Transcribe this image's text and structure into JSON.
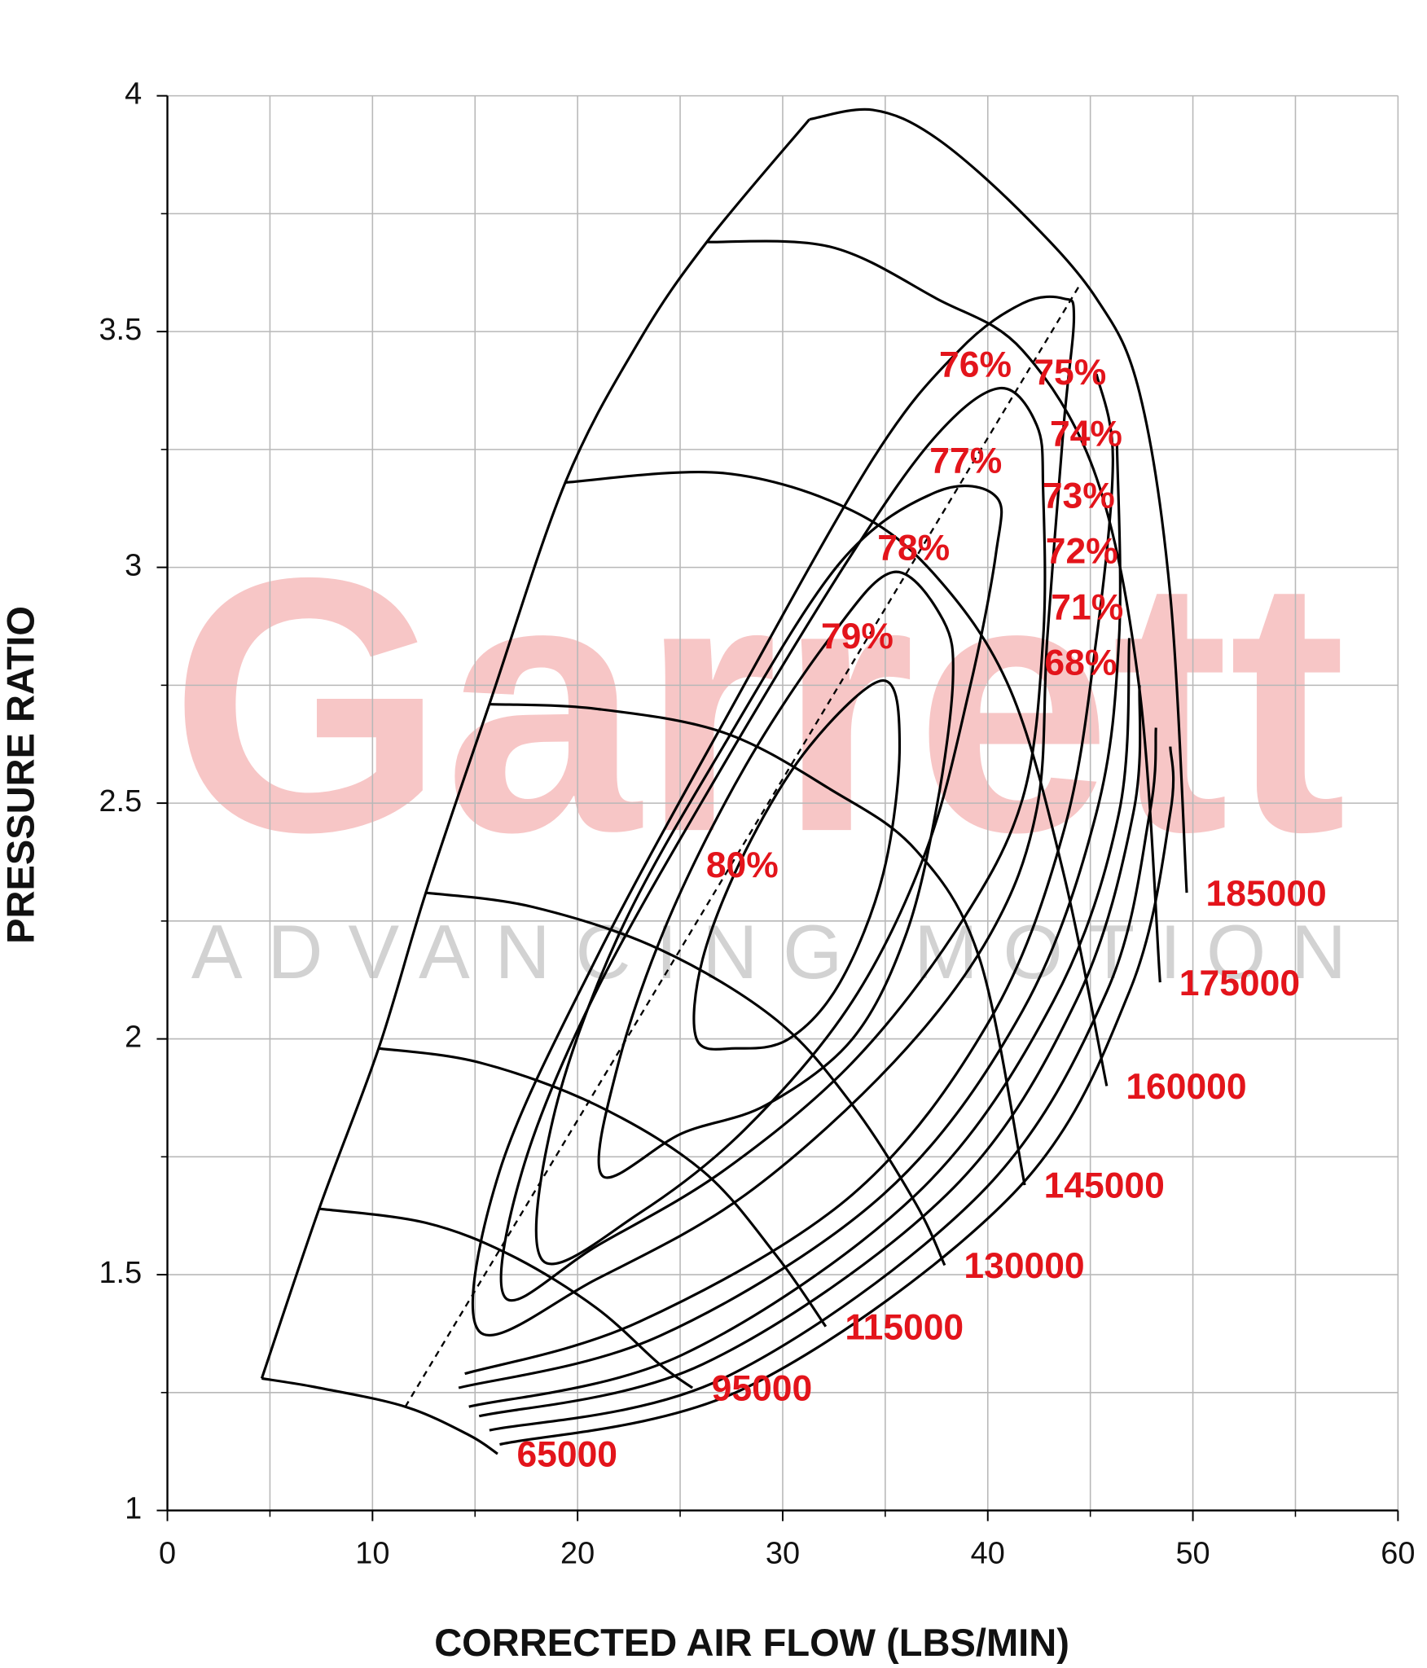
{
  "chart_data": {
    "type": "line",
    "xlabel": "CORRECTED AIR FLOW (LBS/MIN)",
    "ylabel": "PRESSURE RATIO",
    "watermark": {
      "brand": "Garrett",
      "tagline": "ADVANCING MOTION"
    },
    "xlim": [
      0,
      60
    ],
    "ylim": [
      1,
      4
    ],
    "xticks": [
      0,
      10,
      20,
      30,
      40,
      50,
      60
    ],
    "yticks": [
      1,
      1.5,
      2,
      2.5,
      3,
      3.5,
      4
    ],
    "x_minor_ticks": [
      5,
      15,
      25,
      35,
      45,
      55
    ],
    "y_minor_ticks": [
      1.25,
      1.75,
      2.25,
      2.75,
      3.25,
      3.75
    ],
    "grid": true,
    "line_color": "#000000",
    "label_color": "#e3141b",
    "speed_lines": [
      {
        "name": "65000",
        "x": [
          4.6,
          7.4,
          11.6,
          14.7,
          16.1
        ],
        "values": [
          1.28,
          1.26,
          1.22,
          1.16,
          1.12
        ]
      },
      {
        "name": "95000",
        "x": [
          7.4,
          12.6,
          16.8,
          20.9,
          24.0,
          25.6
        ],
        "values": [
          1.64,
          1.61,
          1.54,
          1.43,
          1.31,
          1.26
        ]
      },
      {
        "name": "115000",
        "x": [
          10.3,
          15.2,
          20.9,
          26.1,
          29.7,
          32.1
        ],
        "values": [
          1.98,
          1.95,
          1.86,
          1.72,
          1.54,
          1.39
        ]
      },
      {
        "name": "130000",
        "x": [
          12.6,
          17.8,
          24.0,
          29.7,
          33.4,
          36.5,
          37.9
        ],
        "values": [
          2.31,
          2.28,
          2.19,
          2.04,
          1.86,
          1.65,
          1.52
        ]
      },
      {
        "name": "145000",
        "x": [
          15.7,
          20.9,
          27.1,
          32.3,
          36.5,
          39.6,
          41.8
        ],
        "values": [
          2.71,
          2.7,
          2.65,
          2.53,
          2.4,
          2.17,
          1.69
        ]
      },
      {
        "name": "160000",
        "x": [
          19.4,
          27.1,
          33.4,
          37.5,
          41.1,
          43.7,
          45.8
        ],
        "values": [
          3.18,
          3.2,
          3.12,
          2.98,
          2.74,
          2.35,
          1.9
        ]
      },
      {
        "name": "175000",
        "x": [
          26.3,
          32.3,
          37.5,
          41.7,
          45.3,
          47.4,
          48.4
        ],
        "values": [
          3.69,
          3.68,
          3.57,
          3.46,
          3.19,
          2.74,
          2.12
        ]
      },
      {
        "name": "185000",
        "x": [
          31.3,
          34.4,
          37.5,
          41.7,
          45.3,
          47.4,
          48.9,
          49.7
        ],
        "values": [
          3.95,
          3.97,
          3.91,
          3.75,
          3.57,
          3.37,
          2.94,
          2.31
        ]
      }
    ],
    "surge_line": {
      "x": [
        4.6,
        7.4,
        10.3,
        12.6,
        15.7,
        19.4,
        23.0,
        26.3,
        31.3
      ],
      "values": [
        1.28,
        1.64,
        1.98,
        2.31,
        2.71,
        3.18,
        3.48,
        3.69,
        3.95
      ]
    },
    "centerline": {
      "dashed": true,
      "x": [
        11.6,
        44.5
      ],
      "values": [
        1.22,
        3.6
      ]
    },
    "efficiency_islands": [
      {
        "name": "80%",
        "closed": true,
        "x": [
          25.8,
          26.1,
          28.2,
          31.3,
          34.9,
          35.7,
          34.9,
          32.8,
          30.3,
          27.7
        ],
        "values": [
          2.0,
          2.17,
          2.4,
          2.62,
          2.76,
          2.62,
          2.35,
          2.12,
          2.0,
          1.98
        ]
      },
      {
        "name": "79%",
        "closed": true,
        "x": [
          21.2,
          22.0,
          24.5,
          28.2,
          32.3,
          35.4,
          37.8,
          38.3,
          37.5,
          36.0,
          33.4,
          29.2,
          25.1
        ],
        "values": [
          1.71,
          1.95,
          2.26,
          2.58,
          2.85,
          2.99,
          2.89,
          2.76,
          2.49,
          2.22,
          2.0,
          1.86,
          1.8
        ]
      },
      {
        "name": "78%",
        "closed": true,
        "x": [
          18.3,
          18.8,
          22.0,
          27.1,
          32.8,
          37.5,
          40.4,
          40.4,
          39.1,
          37.0,
          33.4,
          28.2,
          23.0
        ],
        "values": [
          1.53,
          1.83,
          2.22,
          2.62,
          3.01,
          3.16,
          3.15,
          3.03,
          2.74,
          2.4,
          2.08,
          1.81,
          1.63
        ]
      },
      {
        "name": "77%",
        "closed": true,
        "x": [
          16.5,
          17.3,
          20.9,
          27.1,
          33.4,
          37.5,
          40.6,
          42.4,
          42.7,
          42.7,
          41.7,
          38.6,
          33.4,
          27.1,
          20.9
        ],
        "values": [
          1.45,
          1.72,
          2.1,
          2.58,
          3.03,
          3.28,
          3.38,
          3.3,
          3.16,
          2.85,
          2.51,
          2.24,
          1.95,
          1.72,
          1.56
        ]
      },
      {
        "name": "76%",
        "closed": true,
        "x": [
          15.2,
          16.2,
          20.9,
          27.1,
          34.4,
          38.6,
          41.7,
          43.7,
          44.2,
          43.7,
          42.9,
          42.4,
          40.1,
          35.4,
          28.2,
          20.9
        ],
        "values": [
          1.38,
          1.72,
          2.17,
          2.67,
          3.23,
          3.46,
          3.56,
          3.57,
          3.53,
          3.3,
          2.85,
          2.49,
          2.22,
          1.95,
          1.67,
          1.49
        ]
      },
      {
        "name": "75%",
        "closed": false,
        "x": [
          14.5,
          23.0,
          33.4,
          40.1,
          43.7,
          45.3,
          46.1,
          45.3
        ],
        "values": [
          1.29,
          1.4,
          1.67,
          2.04,
          2.44,
          2.85,
          3.23,
          3.41
        ]
      },
      {
        "name": "74%",
        "closed": false,
        "x": [
          14.2,
          24.0,
          34.9,
          41.7,
          45.3,
          46.4,
          46.3
        ],
        "values": [
          1.26,
          1.37,
          1.67,
          2.06,
          2.48,
          2.85,
          3.26
        ]
      },
      {
        "name": "73%",
        "closed": false,
        "x": [
          14.7,
          25.1,
          36.5,
          43.2,
          46.4,
          46.9
        ],
        "values": [
          1.22,
          1.33,
          1.67,
          2.08,
          2.48,
          2.85
        ]
      },
      {
        "name": "72%",
        "closed": false,
        "x": [
          15.2,
          26.1,
          38.0,
          44.3,
          47.1,
          47.4
        ],
        "values": [
          1.2,
          1.31,
          1.67,
          2.08,
          2.48,
          2.75
        ]
      },
      {
        "name": "71%",
        "closed": false,
        "x": [
          15.7,
          27.1,
          39.6,
          45.8,
          47.9,
          48.2
        ],
        "values": [
          1.17,
          1.28,
          1.67,
          2.1,
          2.48,
          2.66
        ]
      },
      {
        "name": "68%",
        "closed": false,
        "x": [
          16.2,
          28.2,
          41.2,
          46.9,
          48.9,
          48.9
        ],
        "values": [
          1.14,
          1.26,
          1.67,
          2.1,
          2.48,
          2.62
        ]
      }
    ]
  }
}
